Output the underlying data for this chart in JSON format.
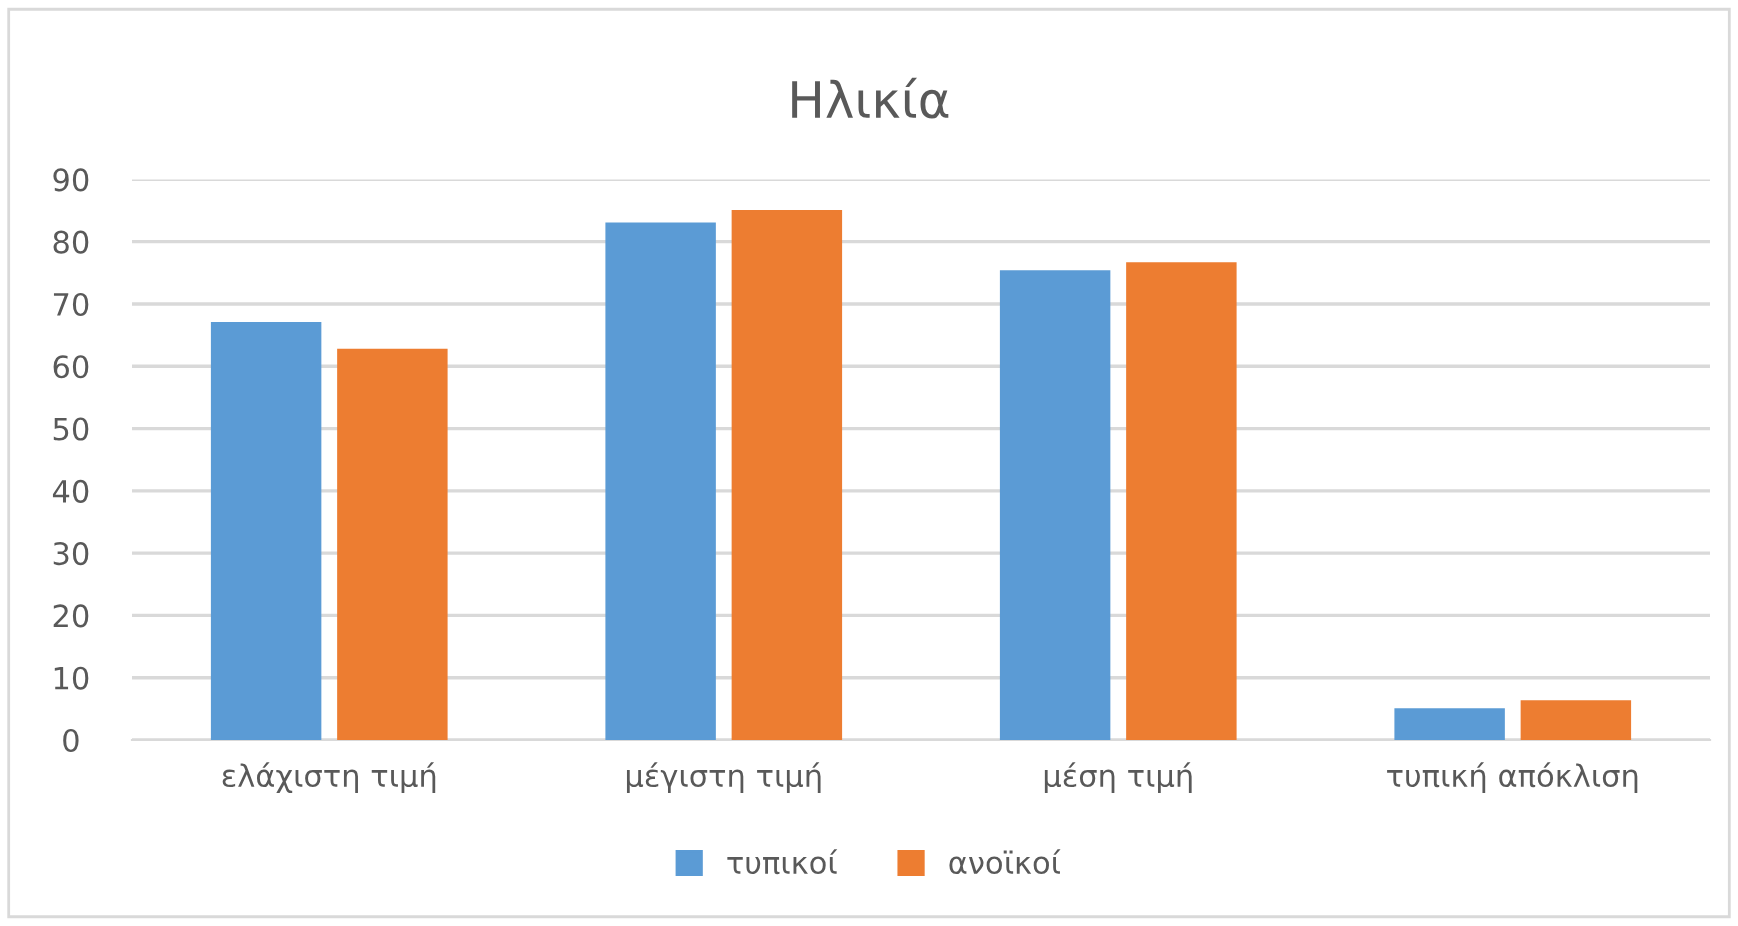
{
  "chart_data": {
    "type": "bar",
    "title": "Ηλικία",
    "categories": [
      "ελάχιστη τιμή",
      "μέγιστη τιμή",
      "μέση τιμή",
      "τυπική απόκλιση"
    ],
    "series": [
      {
        "name": "τυπικοί",
        "color": "#5b9bd5",
        "values": [
          67.1,
          83.1,
          75.4,
          5.1
        ]
      },
      {
        "name": "ανοϊκοί",
        "color": "#ed7d31",
        "values": [
          62.8,
          85.1,
          76.7,
          6.4
        ]
      }
    ],
    "ylim": [
      0,
      90
    ],
    "yticks": [
      0,
      10,
      20,
      30,
      40,
      50,
      60,
      70,
      80,
      90
    ],
    "grid": "y",
    "legend": "bottom"
  }
}
